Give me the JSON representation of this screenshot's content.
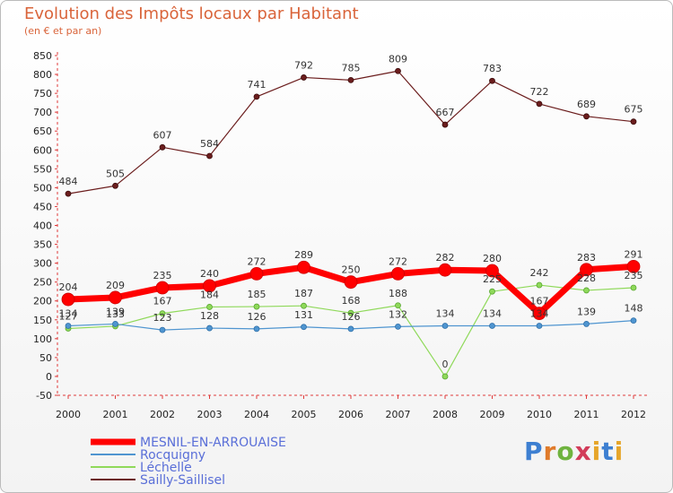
{
  "chart_data": {
    "type": "line",
    "title": "Evolution des Impôts locaux par Habitant",
    "subtitle": "(en € et par an)",
    "x": [
      "2000",
      "2001",
      "2002",
      "2003",
      "2004",
      "2005",
      "2006",
      "2007",
      "2008",
      "2009",
      "2010",
      "2011",
      "2012"
    ],
    "ylim": [
      -50,
      850
    ],
    "yticks": [
      -50,
      0,
      50,
      100,
      150,
      200,
      250,
      300,
      350,
      400,
      450,
      500,
      550,
      600,
      650,
      700,
      750,
      800,
      850
    ],
    "grid": false,
    "legend_position": "bottom-left",
    "series": [
      {
        "name": "MESNIL-EN-ARROUAISE",
        "color": "#ff0000",
        "values": [
          204,
          209,
          235,
          240,
          272,
          289,
          250,
          272,
          282,
          280,
          167,
          283,
          291
        ]
      },
      {
        "name": "Rocquigny",
        "color": "#4f95d0",
        "values": [
          134,
          139,
          123,
          128,
          126,
          131,
          126,
          132,
          134,
          134,
          134,
          139,
          148
        ]
      },
      {
        "name": "Léchelle",
        "color": "#8fd95a",
        "values": [
          127,
          133,
          167,
          184,
          185,
          187,
          168,
          188,
          0,
          225,
          242,
          228,
          235
        ]
      },
      {
        "name": "Sailly-Saillisel",
        "color": "#6b1d1d",
        "values": [
          484,
          505,
          607,
          584,
          741,
          792,
          785,
          809,
          667,
          783,
          722,
          689,
          675
        ]
      }
    ]
  },
  "logo": {
    "p": "P",
    "r": "r",
    "o": "o",
    "x": "x",
    "i": "i",
    "t": "t",
    "i2": "i"
  }
}
